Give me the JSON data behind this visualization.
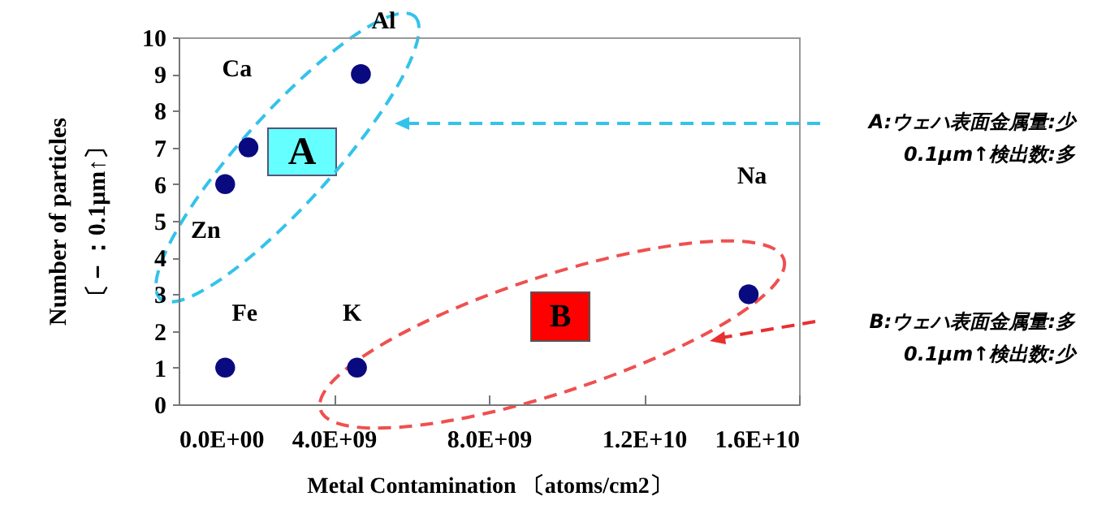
{
  "chart_data": {
    "type": "scatter",
    "xlabel": "Metal Contamination 〔atoms/cm2〕",
    "ylabel": "Number of particles\n〔－：0.1μm↑〕",
    "x": [
      1200000000.0,
      1800000000.0,
      4700000000.0,
      1200000000.0,
      4600000000.0,
      14700000000.0
    ],
    "series": [
      {
        "color": "#0a0a80",
        "values": [
          6,
          7,
          9,
          1,
          1,
          3
        ]
      }
    ],
    "xlim": [
      0,
      16000000000.0
    ],
    "ylim": [
      0,
      10
    ],
    "xticks": [
      {
        "value": 0,
        "label": "0.0E+00"
      },
      {
        "value": 4000000000.0,
        "label": "4.0E+09"
      },
      {
        "value": 8000000000.0,
        "label": "8.0E+09"
      },
      {
        "value": 12000000000.0,
        "label": "1.2E+10"
      },
      {
        "value": 16000000000.0,
        "label": "1.6E+10"
      }
    ],
    "yticks": [
      0,
      1,
      2,
      3,
      4,
      5,
      6,
      7,
      8,
      9,
      10
    ],
    "marker": "circle",
    "annotations": [
      {
        "text": "Zn",
        "x": 1200000000.0,
        "y": 6
      },
      {
        "text": "Ca",
        "x": 1800000000.0,
        "y": 7
      },
      {
        "text": "Al",
        "x": 4700000000.0,
        "y": 9
      },
      {
        "text": "Fe",
        "x": 1200000000.0,
        "y": 1
      },
      {
        "text": "K",
        "x": 4600000000.0,
        "y": 1
      },
      "Na",
      "A",
      "B",
      "A:ウェハ表面金属量:少\n0.1μm↑検出数:多",
      "B:ウェハ表面金属量:多\n0.1μm↑検出数:少"
    ]
  }
}
